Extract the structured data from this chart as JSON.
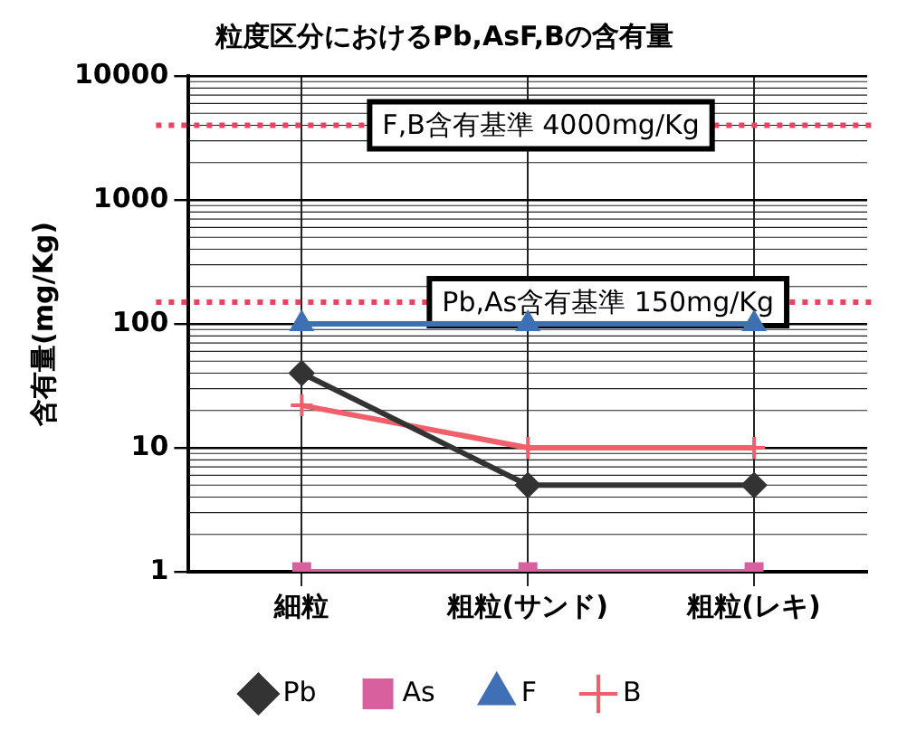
{
  "chart_data": {
    "type": "line",
    "title": "粒度区分におけるPb,AsF,Bの含有量",
    "ylabel": "含有量(mg/Kg)",
    "categories": [
      "細粒",
      "粗粒(サンド)",
      "粗粒(レキ)"
    ],
    "series": [
      {
        "name": "Pb",
        "color": "#333333",
        "values": [
          40,
          5,
          5
        ],
        "marker": "diamond"
      },
      {
        "name": "As",
        "color": "#d9609f",
        "values": [
          1,
          1,
          1
        ],
        "marker": "square"
      },
      {
        "name": "F",
        "color": "#3f6fb5",
        "values": [
          100,
          100,
          100
        ],
        "marker": "triangle"
      },
      {
        "name": "B",
        "color": "#f0606a",
        "values": [
          22,
          10,
          10
        ],
        "marker": "cross"
      }
    ],
    "log": "y",
    "ylim": [
      1,
      10000
    ],
    "yticks": [
      1,
      10,
      100,
      1000,
      10000
    ],
    "grid": true,
    "legend": "bottom",
    "ref_lines": [
      {
        "axis": "y",
        "value": 4000,
        "label": "F,B含有基準 4000mg/Kg",
        "color": "#f04060",
        "line_style": "dotted"
      },
      {
        "axis": "y",
        "value": 150,
        "label": "Pb,As含有基準 150mg/Kg",
        "color": "#f04060",
        "line_style": "dotted"
      }
    ]
  }
}
